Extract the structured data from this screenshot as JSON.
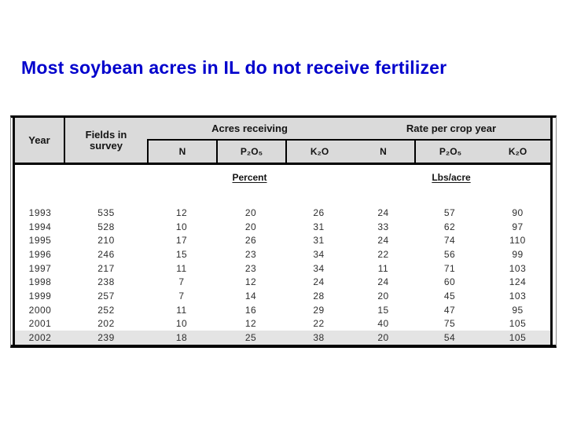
{
  "title": "Most soybean acres in IL do not receive fertilizer",
  "colors": {
    "title_text": "#0000CC",
    "header_bg": "#DADADA",
    "highlight_row_bg": "#E4E4E4",
    "table_border": "#000000"
  },
  "table": {
    "header": {
      "year": "Year",
      "fields_line1": "Fields in",
      "fields_line2": "survey",
      "group1": "Acres receiving",
      "group2": "Rate per crop year",
      "sub_headers": [
        "N",
        "P₂O₅",
        "K₂O",
        "N",
        "P₂O₅",
        "K₂O"
      ],
      "unit1": "Percent",
      "unit2": "Lbs/acre"
    },
    "rows": [
      {
        "year": "1993",
        "fields": "535",
        "acres_receiving": [
          "12",
          "20",
          "26"
        ],
        "rate_per_crop_year": [
          "24",
          "57",
          "90"
        ],
        "highlight": false
      },
      {
        "year": "1994",
        "fields": "528",
        "acres_receiving": [
          "10",
          "20",
          "31"
        ],
        "rate_per_crop_year": [
          "33",
          "62",
          "97"
        ],
        "highlight": false
      },
      {
        "year": "1995",
        "fields": "210",
        "acres_receiving": [
          "17",
          "26",
          "31"
        ],
        "rate_per_crop_year": [
          "24",
          "74",
          "110"
        ],
        "highlight": false
      },
      {
        "year": "1996",
        "fields": "246",
        "acres_receiving": [
          "15",
          "23",
          "34"
        ],
        "rate_per_crop_year": [
          "22",
          "56",
          "99"
        ],
        "highlight": false
      },
      {
        "year": "1997",
        "fields": "217",
        "acres_receiving": [
          "11",
          "23",
          "34"
        ],
        "rate_per_crop_year": [
          "11",
          "71",
          "103"
        ],
        "highlight": false
      },
      {
        "year": "1998",
        "fields": "238",
        "acres_receiving": [
          "7",
          "12",
          "24"
        ],
        "rate_per_crop_year": [
          "24",
          "60",
          "124"
        ],
        "highlight": false
      },
      {
        "year": "1999",
        "fields": "257",
        "acres_receiving": [
          "7",
          "14",
          "28"
        ],
        "rate_per_crop_year": [
          "20",
          "45",
          "103"
        ],
        "highlight": false
      },
      {
        "year": "2000",
        "fields": "252",
        "acres_receiving": [
          "11",
          "16",
          "29"
        ],
        "rate_per_crop_year": [
          "15",
          "47",
          "95"
        ],
        "highlight": false
      },
      {
        "year": "2001",
        "fields": "202",
        "acres_receiving": [
          "10",
          "12",
          "22"
        ],
        "rate_per_crop_year": [
          "40",
          "75",
          "105"
        ],
        "highlight": false
      },
      {
        "year": "2002",
        "fields": "239",
        "acres_receiving": [
          "18",
          "25",
          "38"
        ],
        "rate_per_crop_year": [
          "20",
          "54",
          "105"
        ],
        "highlight": true
      }
    ]
  }
}
